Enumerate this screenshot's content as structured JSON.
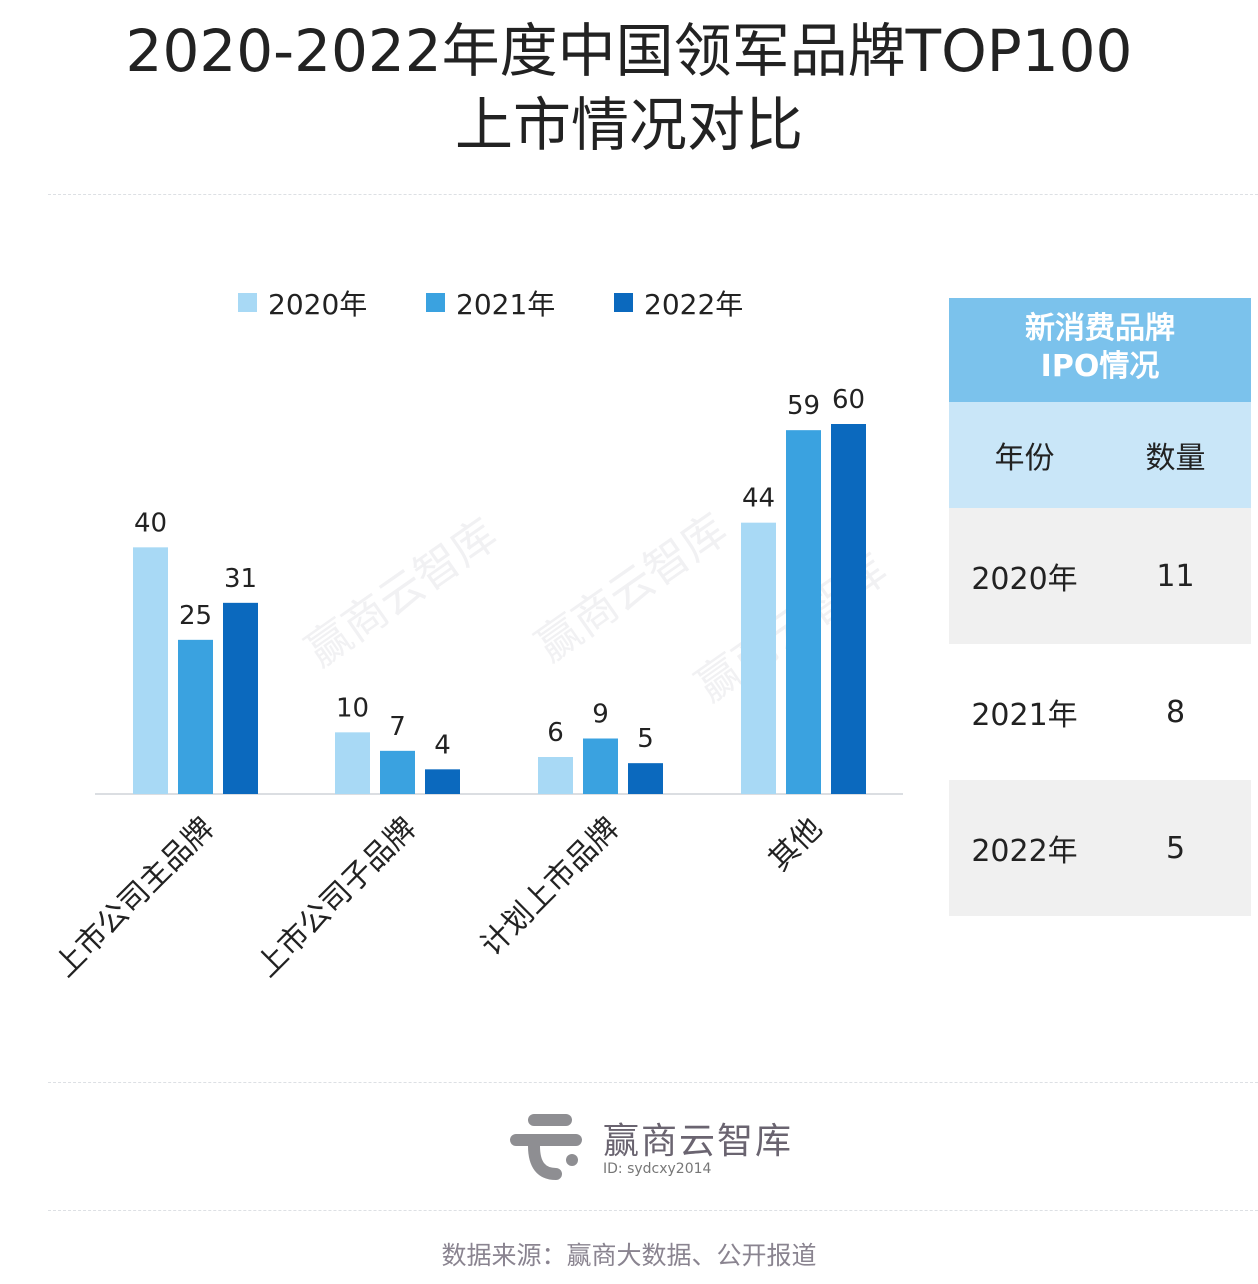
{
  "title": [
    "2020-2022年度中国领军品牌TOP100",
    "上市情况对比"
  ],
  "chart_data": {
    "type": "bar",
    "categories": [
      "上市公司主品牌",
      "上市公司子品牌",
      "计划上市品牌",
      "其他"
    ],
    "series": [
      {
        "name": "2020年",
        "values": [
          40,
          10,
          6,
          44
        ],
        "color": "#a8d9f5"
      },
      {
        "name": "2021年",
        "values": [
          25,
          7,
          9,
          59
        ],
        "color": "#3aa2e0"
      },
      {
        "name": "2022年",
        "values": [
          31,
          4,
          5,
          60
        ],
        "color": "#0b69be"
      }
    ],
    "ylim": [
      0,
      60
    ],
    "grid": false,
    "legend": "top",
    "data_labels": true
  },
  "ipo_table": {
    "title": [
      "新消费品牌",
      "IPO情况"
    ],
    "headers": [
      "年份",
      "数量"
    ],
    "rows": [
      [
        "2020年",
        "11"
      ],
      [
        "2021年",
        "8"
      ],
      [
        "2022年",
        "5"
      ]
    ]
  },
  "watermark": "赢商云智库",
  "brand": {
    "name": "赢商云智库",
    "id": "ID: sydcxy2014"
  },
  "source": "数据来源：赢商大数据、公开报道"
}
